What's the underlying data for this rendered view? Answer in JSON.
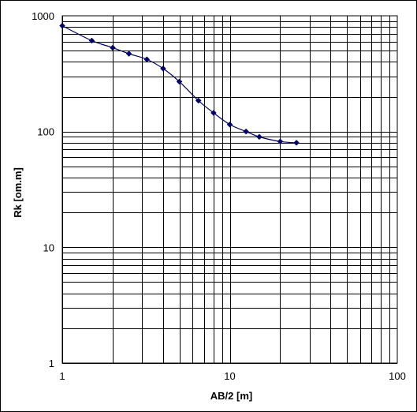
{
  "chart_data": {
    "type": "scatter",
    "title": "",
    "xlabel": "AB/2 [m]",
    "ylabel": "Rk [om.m]",
    "x_scale": "log",
    "y_scale": "log",
    "xlim": [
      1,
      100
    ],
    "ylim": [
      1,
      1000
    ],
    "grid": true,
    "legend": "none",
    "line_style": "smoothed line with diamond markers",
    "x_ticks": [
      "1",
      "10",
      "100"
    ],
    "y_ticks": [
      "1",
      "10",
      "100",
      "1000"
    ],
    "series": [
      {
        "color": "#000066",
        "x": [
          1,
          1.5,
          2,
          2.5,
          3.2,
          4,
          5,
          6.5,
          8,
          10,
          12.5,
          15,
          20,
          25
        ],
        "y": [
          820,
          610,
          530,
          470,
          420,
          350,
          270,
          185,
          145,
          115,
          100,
          90,
          82,
          80
        ]
      }
    ]
  }
}
